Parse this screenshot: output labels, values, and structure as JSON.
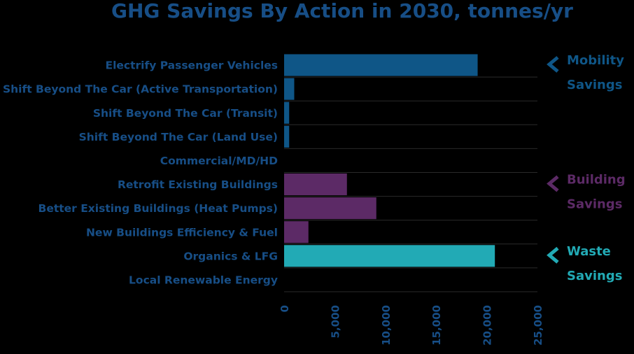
{
  "chart_data": {
    "type": "bar",
    "orientation": "horizontal",
    "title": "GHG Savings By Action in 2030, tonnes/yr",
    "xlabel": "",
    "ylabel": "",
    "xlim": [
      0,
      25000
    ],
    "ticks": [
      0,
      5000,
      10000,
      15000,
      20000,
      25000
    ],
    "tick_labels": [
      "0",
      "5,000",
      "10,000",
      "15,000",
      "20,000",
      "25,000"
    ],
    "categories": [
      "Electrify Passenger Vehicles",
      "Shift Beyond The Car (Active Transportation)",
      "Shift Beyond The Car (Transit)",
      "Shift Beyond The Car (Land Use)",
      "Commercial/MD/HD",
      "Retrofit Existing Buildings",
      "Better Existing Buildings (Heat Pumps)",
      "New Buildings Efficiency & Fuel",
      "Organics & LFG",
      "Local Renewable Energy"
    ],
    "values": [
      19100,
      1000,
      500,
      500,
      0,
      6200,
      9100,
      2400,
      20800,
      0
    ],
    "groups": [
      {
        "name_line1": "Mobility",
        "name_line2": "Savings",
        "color": "#0F5687",
        "start_index": 0,
        "end_index": 4
      },
      {
        "name_line1": "Building",
        "name_line2": "Savings",
        "color": "#5C2A66",
        "start_index": 5,
        "end_index": 7
      },
      {
        "name_line1": "Waste",
        "name_line2": "Savings",
        "color": "#22AAB5",
        "start_index": 8,
        "end_index": 9
      }
    ],
    "bar_colors": [
      "#0F5687",
      "#0F5687",
      "#0F5687",
      "#0F5687",
      "#0F5687",
      "#5C2A66",
      "#5C2A66",
      "#5C2A66",
      "#22AAB5",
      "#22AAB5"
    ],
    "text_color": "#174E86",
    "grid": true
  }
}
